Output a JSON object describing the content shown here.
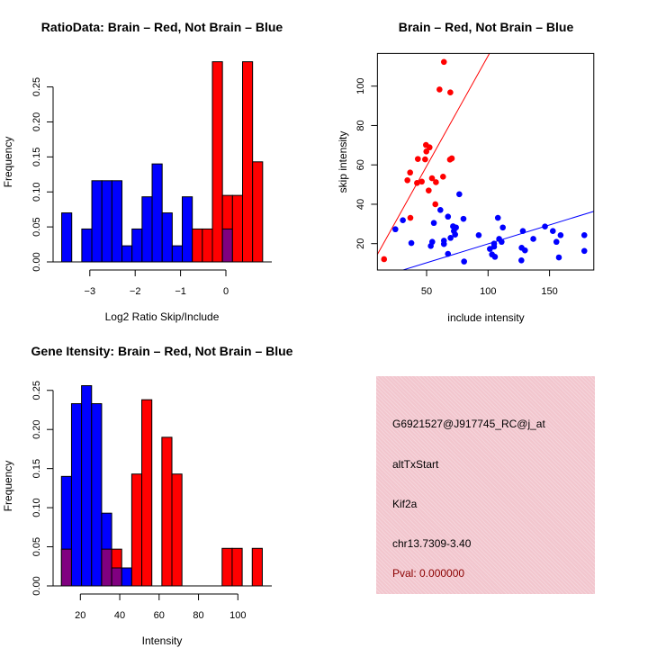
{
  "colors": {
    "brain": "#ff0000",
    "not_brain": "#0000ff",
    "overlap": "#800080",
    "pval": "#8b0000",
    "info_bg": "#f2c6ce"
  },
  "chart_data": [
    {
      "type": "bar",
      "title": "RatioData: Brain – Red, Not Brain – Blue",
      "xlabel": "Log2 Ratio Skip/Include",
      "ylabel": "Frequency",
      "bin_start": -3.62,
      "bin_width": 0.2215,
      "series": [
        {
          "name": "Not Brain",
          "color": "blue",
          "values": [
            0.07,
            0,
            0.047,
            0.116,
            0.116,
            0.116,
            0.023,
            0.047,
            0.093,
            0.14,
            0.07,
            0.023,
            0.093,
            0,
            0,
            0,
            0.047,
            0,
            0,
            0
          ]
        },
        {
          "name": "Brain",
          "color": "red",
          "values": [
            0,
            0,
            0,
            0,
            0,
            0,
            0,
            0,
            0,
            0,
            0,
            0,
            0,
            0.047,
            0.047,
            0.286,
            0.095,
            0.095,
            0.286,
            0.143
          ]
        }
      ],
      "xticks": [
        -3,
        -2,
        -1,
        0
      ],
      "xtick_labels": [
        "−3",
        "−2",
        "−1",
        "0"
      ],
      "yticks": [
        0,
        0.05,
        0.1,
        0.15,
        0.2,
        0.25
      ],
      "ytick_labels": [
        "0.00",
        "0.05",
        "0.10",
        "0.15",
        "0.20",
        "0.25"
      ]
    },
    {
      "type": "scatter",
      "title": "Brain – Red, Not Brain – Blue",
      "xlabel": "include intensity",
      "ylabel": "skip intensity",
      "xlim": [
        10,
        186
      ],
      "ylim": [
        6.6,
        116.6
      ],
      "xticks": [
        50,
        100,
        150
      ],
      "xtick_labels": [
        "50",
        "100",
        "150"
      ],
      "yticks": [
        20,
        40,
        60,
        80,
        100
      ],
      "ytick_labels": [
        "20",
        "40",
        "60",
        "80",
        "100"
      ],
      "series": [
        {
          "name": "Brain",
          "color": "red",
          "fit": {
            "intercept": 3.35,
            "slope": 1.12
          },
          "points": [
            [
              64.1,
              112.3
            ],
            [
              60.5,
              98.3
            ],
            [
              69.3,
              96.8
            ],
            [
              49.5,
              70.1
            ],
            [
              52.4,
              68.9
            ],
            [
              49.8,
              66.8
            ],
            [
              42.9,
              63.0
            ],
            [
              48.8,
              62.8
            ],
            [
              69.0,
              62.7
            ],
            [
              70.5,
              63.3
            ],
            [
              36.6,
              56.1
            ],
            [
              34.4,
              52.2
            ],
            [
              46.1,
              51.5
            ],
            [
              42.2,
              50.8
            ],
            [
              54.4,
              53.2
            ],
            [
              57.6,
              51.2
            ],
            [
              63.4,
              54.0
            ],
            [
              51.7,
              47.0
            ],
            [
              57.1,
              40.0
            ],
            [
              36.8,
              33.1
            ],
            [
              15.4,
              12.1
            ]
          ]
        },
        {
          "name": "Not Brain",
          "color": "blue",
          "fit": {
            "intercept": 0.68,
            "slope": 0.192
          },
          "points": [
            [
              76.6,
              45.1
            ],
            [
              61.2,
              37.1
            ],
            [
              30.7,
              31.9
            ],
            [
              24.6,
              27.3
            ],
            [
              55.9,
              30.5
            ],
            [
              67.4,
              33.7
            ],
            [
              80.0,
              32.6
            ],
            [
              108.0,
              33.1
            ],
            [
              37.6,
              20.3
            ],
            [
              53.4,
              18.8
            ],
            [
              54.6,
              20.9
            ],
            [
              64.1,
              21.5
            ],
            [
              64.1,
              19.8
            ],
            [
              69.5,
              22.9
            ],
            [
              71.5,
              28.8
            ],
            [
              73.9,
              28.2
            ],
            [
              72.2,
              26.4
            ],
            [
              73.2,
              24.6
            ],
            [
              67.4,
              14.8
            ],
            [
              80.5,
              10.9
            ],
            [
              92.4,
              24.3
            ],
            [
              101.5,
              17.3
            ],
            [
              104.9,
              20.0
            ],
            [
              104.9,
              18.5
            ],
            [
              103.2,
              14.5
            ],
            [
              105.6,
              13.3
            ],
            [
              109.0,
              22.4
            ],
            [
              111.0,
              20.9
            ],
            [
              112.0,
              28.2
            ],
            [
              127.1,
              11.5
            ],
            [
              128.3,
              26.4
            ],
            [
              127.3,
              17.9
            ],
            [
              130.0,
              16.6
            ],
            [
              136.8,
              22.4
            ],
            [
              146.3,
              28.7
            ],
            [
              152.7,
              26.4
            ],
            [
              155.6,
              20.9
            ],
            [
              159.0,
              24.3
            ],
            [
              157.6,
              13.0
            ],
            [
              178.3,
              24.3
            ],
            [
              178.3,
              16.3
            ]
          ]
        }
      ]
    },
    {
      "type": "bar",
      "title": "Gene Itensity: Brain – Red, Not Brain – Blue",
      "xlabel": "Intensity",
      "ylabel": "Frequency",
      "bin_start": 10.4,
      "bin_width": 5.1,
      "series": [
        {
          "name": "Not Brain",
          "color": "blue",
          "values": [
            0.14,
            0.233,
            0.256,
            0.233,
            0.093,
            0.023,
            0.023,
            0,
            0,
            0,
            0,
            0,
            0,
            0,
            0,
            0,
            0,
            0,
            0,
            0
          ]
        },
        {
          "name": "Brain",
          "color": "red",
          "values": [
            0.047,
            0,
            0,
            0,
            0.047,
            0.047,
            0,
            0.143,
            0.238,
            0,
            0.19,
            0.143,
            0,
            0,
            0,
            0,
            0.048,
            0.048,
            0,
            0.048
          ]
        }
      ],
      "xticks": [
        20,
        40,
        60,
        80,
        100
      ],
      "xtick_labels": [
        "20",
        "40",
        "60",
        "80",
        "100"
      ],
      "yticks": [
        0,
        0.05,
        0.1,
        0.15,
        0.2,
        0.25
      ],
      "ytick_labels": [
        "0.00",
        "0.05",
        "0.10",
        "0.15",
        "0.20",
        "0.25"
      ]
    }
  ],
  "info": {
    "probe": "G6921527@J917745_RC@j_at",
    "event": "altTxStart",
    "gene": "Kif2a",
    "location": "chr13.7309-3.40",
    "pval": "Pval: 0.000000"
  }
}
